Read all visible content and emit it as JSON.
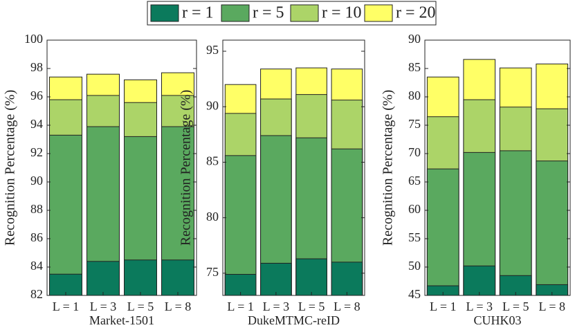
{
  "chart_data": [
    {
      "type": "bar",
      "xlabel": "Market-1501",
      "ylabel": "Recognition Percentage (%)",
      "categories": [
        "L = 1",
        "L = 3",
        "L = 5",
        "L = 8"
      ],
      "series": [
        {
          "name": "r = 1",
          "color": "#0b7a5c",
          "values": [
            83.5,
            84.4,
            84.5,
            84.5
          ]
        },
        {
          "name": "r = 5",
          "color": "#5aa95f",
          "values": [
            93.3,
            93.9,
            93.2,
            93.9
          ]
        },
        {
          "name": "r = 10",
          "color": "#acd468",
          "values": [
            95.8,
            96.1,
            95.6,
            96.1
          ]
        },
        {
          "name": "r = 20",
          "color": "#ffff66",
          "values": [
            97.4,
            97.6,
            97.2,
            97.7
          ]
        }
      ],
      "ylim": [
        82,
        100
      ],
      "yticks": [
        82,
        84,
        86,
        88,
        90,
        92,
        94,
        96,
        98,
        100
      ]
    },
    {
      "type": "bar",
      "xlabel": "DukeMTMC-reID",
      "ylabel": "Recognition Percentage (%)",
      "categories": [
        "L = 1",
        "L = 3",
        "L = 5",
        "L = 8"
      ],
      "series": [
        {
          "values": [
            74.9,
            75.9,
            76.3,
            76.0
          ]
        },
        {
          "values": [
            85.6,
            87.4,
            87.2,
            86.2
          ]
        },
        {
          "values": [
            89.4,
            90.7,
            91.1,
            90.6
          ]
        },
        {
          "values": [
            92.0,
            93.4,
            93.5,
            93.4
          ]
        }
      ],
      "ylim": [
        73,
        96
      ],
      "yticks": [
        75,
        80,
        85,
        90,
        95
      ]
    },
    {
      "type": "bar",
      "xlabel": "CUHK03",
      "ylabel": "Recognition Percentage (%)",
      "categories": [
        "L = 1",
        "L = 3",
        "L = 5",
        "L = 8"
      ],
      "series": [
        {
          "values": [
            46.7,
            50.2,
            48.5,
            46.9
          ]
        },
        {
          "values": [
            67.3,
            70.2,
            70.5,
            68.7
          ]
        },
        {
          "values": [
            76.5,
            79.5,
            78.2,
            77.9
          ]
        },
        {
          "values": [
            83.5,
            86.6,
            85.1,
            85.8
          ]
        }
      ],
      "ylim": [
        45,
        90
      ],
      "yticks": [
        45,
        50,
        55,
        60,
        65,
        70,
        75,
        80,
        85,
        90
      ]
    }
  ]
}
